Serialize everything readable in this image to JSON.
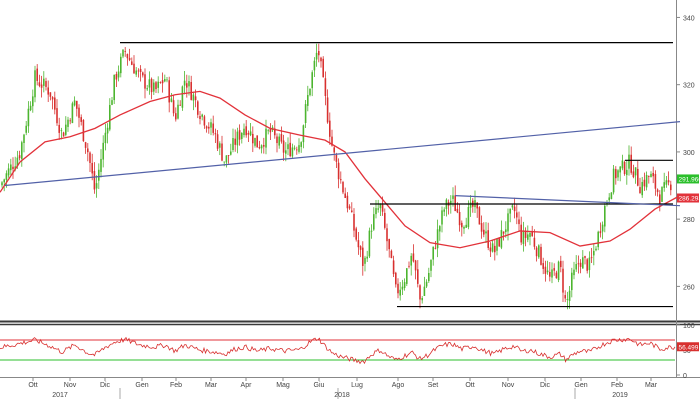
{
  "chart_data": {
    "type": "candlestick",
    "instrument_panel": {
      "y_range": [
        250,
        344
      ],
      "y_ticks": [
        260,
        280,
        300,
        320,
        340
      ],
      "price_labels": [
        {
          "label": "291.960",
          "value": 291.96,
          "color": "#2bbf2b"
        },
        {
          "label": "286.2938",
          "value": 286.29,
          "color": "#e2323a"
        }
      ],
      "moving_average": {
        "color": "#e2323a",
        "points": [
          [
            0,
            288
          ],
          [
            20,
            297
          ],
          [
            45,
            303
          ],
          [
            70,
            304.5
          ],
          [
            95,
            307
          ],
          [
            120,
            311
          ],
          [
            150,
            315
          ],
          [
            175,
            317
          ],
          [
            200,
            318
          ],
          [
            220,
            316
          ],
          [
            245,
            311
          ],
          [
            270,
            307
          ],
          [
            300,
            305
          ],
          [
            325,
            303.5
          ],
          [
            345,
            300
          ],
          [
            365,
            292
          ],
          [
            385,
            285
          ],
          [
            405,
            278
          ],
          [
            430,
            273
          ],
          [
            460,
            271.5
          ],
          [
            490,
            273.5
          ],
          [
            520,
            276.5
          ],
          [
            550,
            276
          ],
          [
            580,
            272
          ],
          [
            610,
            273.5
          ],
          [
            630,
            277
          ],
          [
            655,
            283
          ],
          [
            680,
            287
          ]
        ]
      },
      "trendlines": [
        {
          "name": "upper-resistance",
          "color": "#000000",
          "from": [
            120,
            332.5
          ],
          "to": [
            673,
            332.5
          ]
        },
        {
          "name": "rising-trend",
          "color": "#5261a8",
          "from": [
            5,
            290
          ],
          "to": [
            680,
            309
          ]
        },
        {
          "name": "range-top",
          "color": "#000000",
          "from": [
            370,
            284.5
          ],
          "to": [
            673,
            284.5
          ]
        },
        {
          "name": "range-bottom",
          "color": "#000000",
          "from": [
            397,
            254
          ],
          "to": [
            673,
            254
          ]
        },
        {
          "name": "short-top",
          "color": "#000000",
          "from": [
            625,
            297.5
          ],
          "to": [
            673,
            297.5
          ]
        },
        {
          "name": "descending-line",
          "color": "#5261a8",
          "from": [
            455,
            287
          ],
          "to": [
            680,
            284
          ]
        }
      ],
      "price_path": [
        [
          0,
          290
        ],
        [
          20,
          300
        ],
        [
          35,
          322
        ],
        [
          50,
          318
        ],
        [
          62,
          305
        ],
        [
          75,
          315
        ],
        [
          88,
          300
        ],
        [
          95,
          288
        ],
        [
          105,
          305
        ],
        [
          115,
          322
        ],
        [
          125,
          330
        ],
        [
          140,
          322
        ],
        [
          155,
          318
        ],
        [
          165,
          322
        ],
        [
          175,
          310
        ],
        [
          185,
          322
        ],
        [
          200,
          312
        ],
        [
          215,
          305
        ],
        [
          225,
          297
        ],
        [
          235,
          303
        ],
        [
          245,
          308
        ],
        [
          258,
          302
        ],
        [
          270,
          306
        ],
        [
          285,
          300
        ],
        [
          300,
          303
        ],
        [
          310,
          320
        ],
        [
          318,
          331
        ],
        [
          325,
          316
        ],
        [
          333,
          300
        ],
        [
          342,
          290
        ],
        [
          350,
          282
        ],
        [
          358,
          272
        ],
        [
          364,
          266
        ],
        [
          372,
          279
        ],
        [
          380,
          284
        ],
        [
          388,
          272
        ],
        [
          396,
          258
        ],
        [
          404,
          262
        ],
        [
          412,
          270
        ],
        [
          420,
          256
        ],
        [
          428,
          263
        ],
        [
          436,
          274
        ],
        [
          444,
          283
        ],
        [
          452,
          286
        ],
        [
          462,
          279
        ],
        [
          474,
          284
        ],
        [
          484,
          276
        ],
        [
          494,
          270
        ],
        [
          504,
          277
        ],
        [
          514,
          283
        ],
        [
          522,
          274
        ],
        [
          530,
          276
        ],
        [
          540,
          269
        ],
        [
          550,
          262
        ],
        [
          560,
          266
        ],
        [
          566,
          254
        ],
        [
          572,
          262
        ],
        [
          580,
          268
        ],
        [
          590,
          266
        ],
        [
          598,
          275
        ],
        [
          606,
          285
        ],
        [
          614,
          293
        ],
        [
          622,
          295
        ],
        [
          630,
          297
        ],
        [
          640,
          290
        ],
        [
          650,
          293
        ],
        [
          660,
          287
        ],
        [
          668,
          290
        ],
        [
          675,
          292
        ]
      ]
    },
    "rsi_panel": {
      "y_ticks": [
        0,
        50,
        100
      ],
      "overbought": {
        "value": 70,
        "color": "#e2323a"
      },
      "oversold": {
        "value": 30,
        "color": "#2bbf2b"
      },
      "last_value_label": "56.499",
      "rsi_path": [
        [
          0,
          55
        ],
        [
          20,
          63
        ],
        [
          35,
          70
        ],
        [
          50,
          58
        ],
        [
          62,
          46
        ],
        [
          75,
          60
        ],
        [
          88,
          44
        ],
        [
          95,
          40
        ],
        [
          105,
          55
        ],
        [
          115,
          66
        ],
        [
          125,
          71
        ],
        [
          140,
          60
        ],
        [
          155,
          56
        ],
        [
          165,
          60
        ],
        [
          175,
          48
        ],
        [
          185,
          60
        ],
        [
          200,
          50
        ],
        [
          215,
          46
        ],
        [
          225,
          42
        ],
        [
          235,
          52
        ],
        [
          245,
          56
        ],
        [
          258,
          48
        ],
        [
          270,
          53
        ],
        [
          285,
          48
        ],
        [
          300,
          51
        ],
        [
          310,
          66
        ],
        [
          318,
          74
        ],
        [
          325,
          58
        ],
        [
          333,
          43
        ],
        [
          342,
          36
        ],
        [
          350,
          32
        ],
        [
          358,
          28
        ],
        [
          364,
          27
        ],
        [
          372,
          42
        ],
        [
          380,
          50
        ],
        [
          388,
          38
        ],
        [
          396,
          30
        ],
        [
          404,
          38
        ],
        [
          412,
          45
        ],
        [
          420,
          32
        ],
        [
          428,
          40
        ],
        [
          436,
          52
        ],
        [
          444,
          60
        ],
        [
          452,
          62
        ],
        [
          462,
          52
        ],
        [
          474,
          58
        ],
        [
          484,
          48
        ],
        [
          494,
          42
        ],
        [
          504,
          52
        ],
        [
          514,
          58
        ],
        [
          522,
          47
        ],
        [
          530,
          50
        ],
        [
          540,
          42
        ],
        [
          550,
          36
        ],
        [
          560,
          42
        ],
        [
          566,
          30
        ],
        [
          572,
          40
        ],
        [
          580,
          48
        ],
        [
          590,
          46
        ],
        [
          598,
          56
        ],
        [
          606,
          64
        ],
        [
          614,
          70
        ],
        [
          622,
          71
        ],
        [
          630,
          72
        ],
        [
          640,
          60
        ],
        [
          650,
          64
        ],
        [
          660,
          52
        ],
        [
          668,
          55
        ],
        [
          675,
          56.5
        ]
      ]
    },
    "x_axis": {
      "months": [
        {
          "label": "Ott",
          "pos": 33
        },
        {
          "label": "Nov",
          "pos": 70
        },
        {
          "label": "Dic",
          "pos": 105
        },
        {
          "label": "Gen",
          "pos": 142
        },
        {
          "label": "Feb",
          "pos": 176
        },
        {
          "label": "Mar",
          "pos": 211
        },
        {
          "label": "Apr",
          "pos": 246
        },
        {
          "label": "Mag",
          "pos": 283
        },
        {
          "label": "Giu",
          "pos": 319
        },
        {
          "label": "Lug",
          "pos": 357
        },
        {
          "label": "Ago",
          "pos": 398
        },
        {
          "label": "Set",
          "pos": 433
        },
        {
          "label": "Ott",
          "pos": 470
        },
        {
          "label": "Nov",
          "pos": 508
        },
        {
          "label": "Dic",
          "pos": 545
        },
        {
          "label": "Gen",
          "pos": 581
        },
        {
          "label": "Feb",
          "pos": 617
        },
        {
          "label": "Mar",
          "pos": 651
        }
      ],
      "years": [
        {
          "label": "2017",
          "pos": 60
        },
        {
          "label": "2018",
          "pos": 342
        },
        {
          "label": "2019",
          "pos": 620
        }
      ]
    }
  }
}
